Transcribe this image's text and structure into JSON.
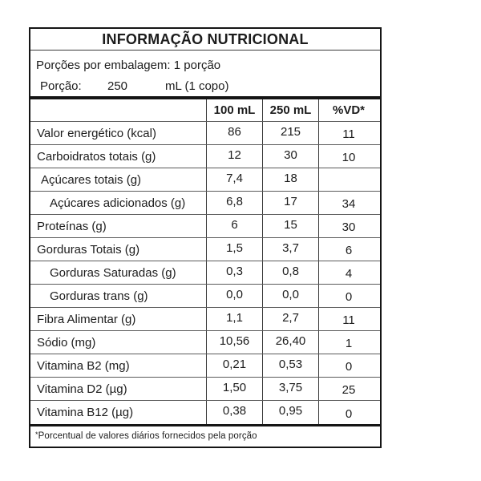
{
  "page": {
    "background_color": "#ffffff",
    "border_color": "#151515",
    "text_color": "#1c1c1c"
  },
  "table": {
    "title": "INFORMAÇÃO NUTRICIONAL",
    "servings_line": "Porções por embalagem: 1 porção",
    "portion": {
      "label": "Porção:",
      "amount": "250",
      "unit": "mL (1 copo)"
    },
    "columns": {
      "nutrient": "",
      "col_100ml": "100 mL",
      "col_250ml": "250 mL",
      "col_vd": "%VD*"
    },
    "rows": [
      {
        "label": "Valor energético (kcal)",
        "per_100ml": "86",
        "per_250ml": "215",
        "vd": "11"
      },
      {
        "label": "Carboidratos totais (g)",
        "per_100ml": "12",
        "per_250ml": "30",
        "vd": "10"
      },
      {
        "label": "Açúcares totais (g)",
        "per_100ml": "7,4",
        "per_250ml": "18",
        "vd": ""
      },
      {
        "label": "Açúcares adicionados (g)",
        "per_100ml": "6,8",
        "per_250ml": "17",
        "vd": "34"
      },
      {
        "label": "Proteínas (g)",
        "per_100ml": "6",
        "per_250ml": "15",
        "vd": "30"
      },
      {
        "label": "Gorduras Totais (g)",
        "per_100ml": "1,5",
        "per_250ml": "3,7",
        "vd": "6"
      },
      {
        "label": "Gorduras Saturadas (g)",
        "per_100ml": "0,3",
        "per_250ml": "0,8",
        "vd": "4"
      },
      {
        "label": "Gorduras trans (g)",
        "per_100ml": "0,0",
        "per_250ml": "0,0",
        "vd": "0"
      },
      {
        "label": "Fibra Alimentar (g)",
        "per_100ml": "1,1",
        "per_250ml": "2,7",
        "vd": "11"
      },
      {
        "label": "Sódio (mg)",
        "per_100ml": "10,56",
        "per_250ml": "26,40",
        "vd": "1"
      },
      {
        "label": "Vitamina B2 (mg)",
        "per_100ml": "0,21",
        "per_250ml": "0,53",
        "vd": "0"
      },
      {
        "label": "Vitamina D2 (µg)",
        "per_100ml": "1,50",
        "per_250ml": "3,75",
        "vd": "25"
      },
      {
        "label": "Vitamina B12 (µg)",
        "per_100ml": "0,38",
        "per_250ml": "0,95",
        "vd": "0"
      }
    ],
    "footnote": {
      "marker": "*",
      "text": "Porcentual de valores diários fornecidos pela porção"
    }
  }
}
